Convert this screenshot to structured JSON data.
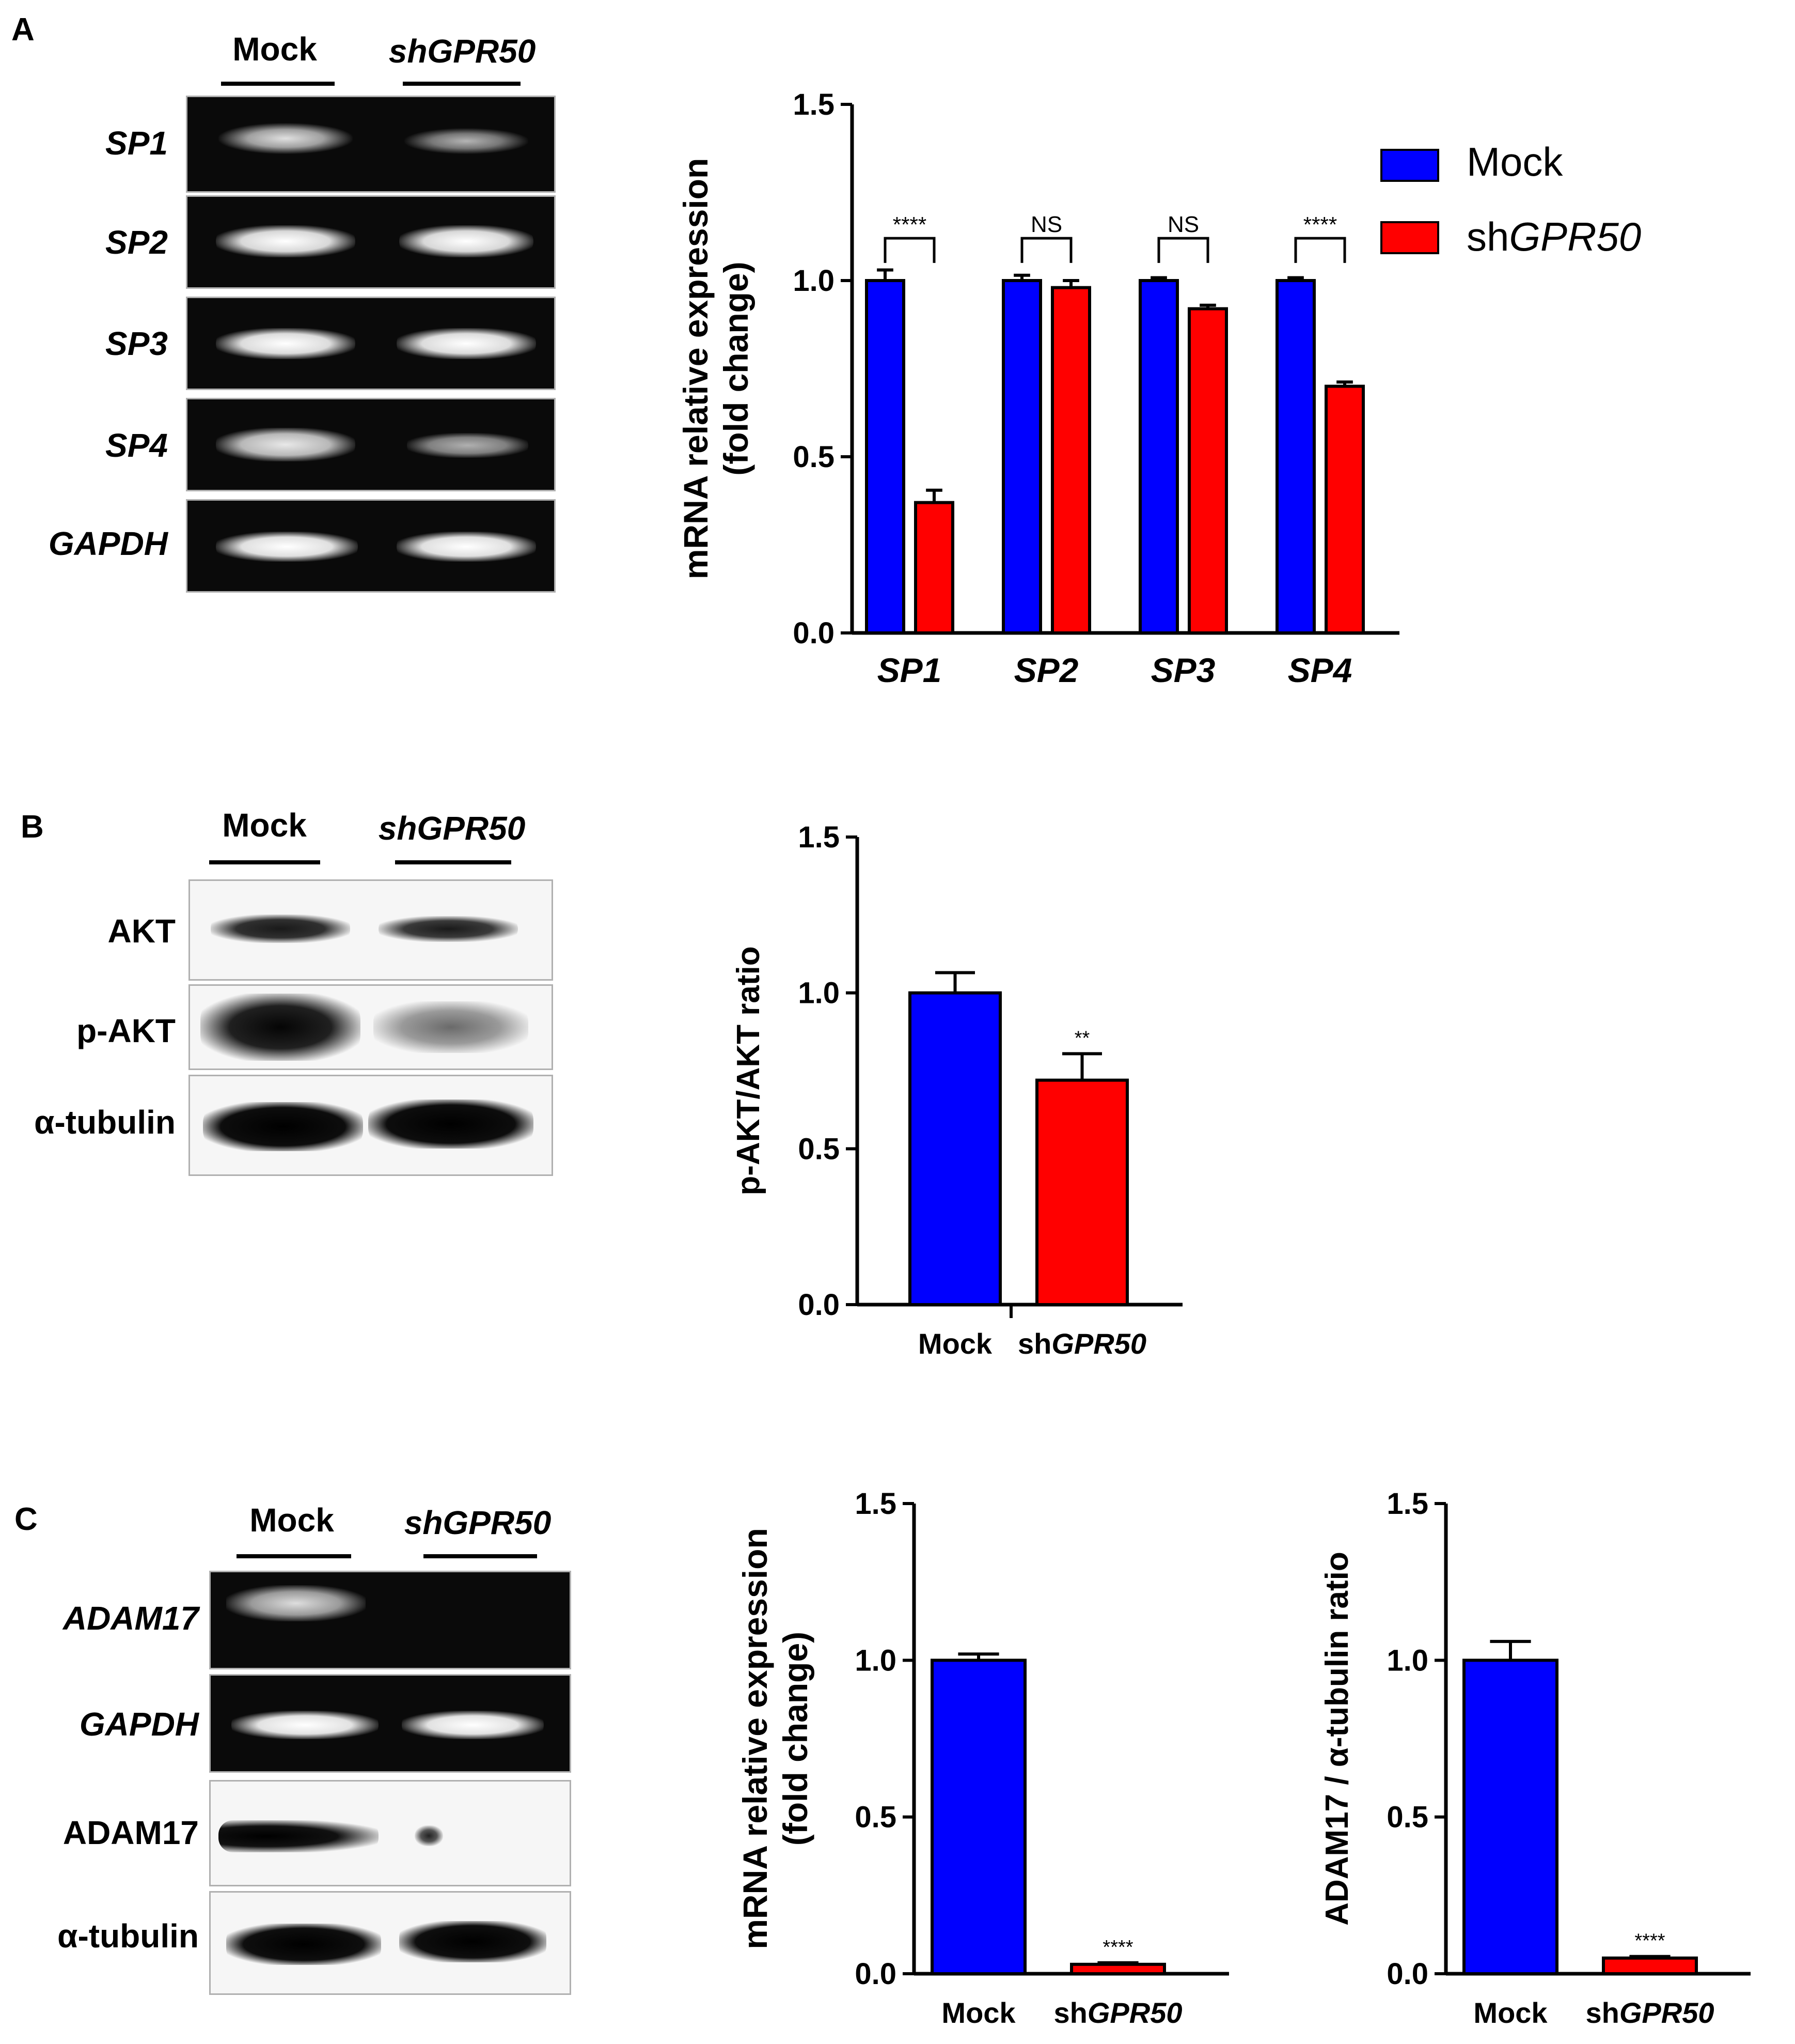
{
  "panels": {
    "a": "A",
    "b": "B",
    "c": "C"
  },
  "gel_a": {
    "lanes": [
      "Mock",
      "shGPR50"
    ],
    "rows": [
      "SP1",
      "SP2",
      "SP3",
      "SP4",
      "GAPDH"
    ]
  },
  "blot_b": {
    "lanes": [
      "Mock",
      "shGPR50"
    ],
    "rows": [
      "AKT",
      "p-AKT",
      "α-tubulin"
    ]
  },
  "blot_c": {
    "lanes": [
      "Mock",
      "shGPR50"
    ],
    "rows": [
      "ADAM17",
      "GAPDH",
      "ADAM17",
      "α-tubulin"
    ]
  },
  "colors": {
    "mock": "#0000ff",
    "sh": "#ff0000"
  },
  "chart_data": [
    {
      "id": "A",
      "type": "bar",
      "ylabel": "mRNA relative expression (fold change)",
      "ylim": [
        0,
        1.5
      ],
      "yticks": [
        "0.0",
        "0.5",
        "1.0",
        "1.5"
      ],
      "categories": [
        "SP1",
        "SP2",
        "SP3",
        "SP4"
      ],
      "legend": {
        "position": "top-right",
        "entries": [
          "Mock",
          "shGPR50"
        ]
      },
      "series": [
        {
          "name": "Mock",
          "values": [
            1.0,
            1.0,
            1.0,
            1.0
          ],
          "errors": [
            0.03,
            0.015,
            0.008,
            0.008
          ]
        },
        {
          "name": "shGPR50",
          "values": [
            0.37,
            0.98,
            0.92,
            0.7
          ],
          "errors": [
            0.035,
            0.02,
            0.01,
            0.012
          ]
        }
      ],
      "significance": [
        "****",
        "NS",
        "NS",
        "****"
      ]
    },
    {
      "id": "B",
      "type": "bar",
      "ylabel": "p-AKT/AKT ratio",
      "ylim": [
        0,
        1.5
      ],
      "yticks": [
        "0.0",
        "0.5",
        "1.0",
        "1.5"
      ],
      "categories": [
        "Mock",
        "shGPR50"
      ],
      "values": [
        1.0,
        0.72
      ],
      "errors": [
        0.065,
        0.085
      ],
      "significance": [
        "",
        "**"
      ]
    },
    {
      "id": "C1",
      "type": "bar",
      "ylabel": "mRNA relative expression (fold change)",
      "ylim": [
        0,
        1.5
      ],
      "yticks": [
        "0.0",
        "0.5",
        "1.0",
        "1.5"
      ],
      "categories": [
        "Mock",
        "shGPR50"
      ],
      "values": [
        1.0,
        0.03
      ],
      "errors": [
        0.02,
        0.005
      ],
      "significance": [
        "",
        "****"
      ]
    },
    {
      "id": "C2",
      "type": "bar",
      "ylabel": "ADAM17 / α-tubulin ratio",
      "ylim": [
        0,
        1.5
      ],
      "yticks": [
        "0.0",
        "0.5",
        "1.0",
        "1.5"
      ],
      "categories": [
        "Mock",
        "shGPR50"
      ],
      "values": [
        1.0,
        0.05
      ],
      "errors": [
        0.06,
        0.005
      ],
      "significance": [
        "",
        "****"
      ]
    }
  ]
}
